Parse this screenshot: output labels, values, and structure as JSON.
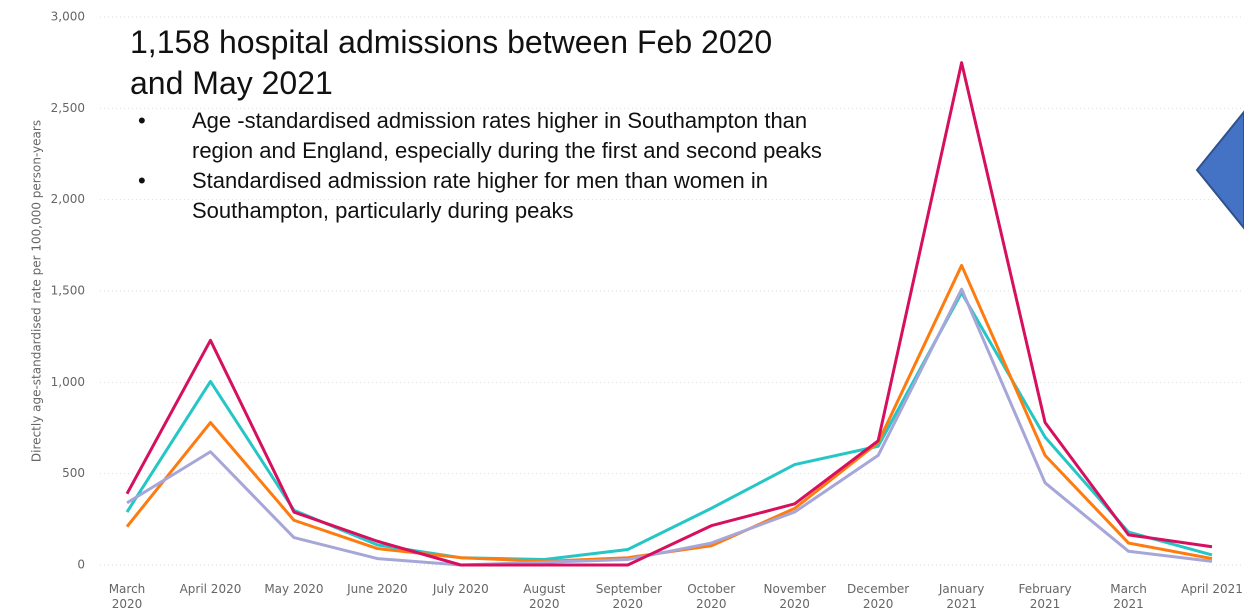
{
  "chart_data": {
    "type": "line",
    "title": "1,158 hospital admissions between Feb 2020 and May 2021",
    "bullets": [
      "Age -standardised admission rates higher in Southampton than region and England, especially during the first and second peaks",
      "Standardised admission rate higher for men than women in Southampton, particularly during peaks"
    ],
    "y_label": "Directly age-standardised rate per 100,000 person-years",
    "categories": [
      "March 2020",
      "April 2020",
      "May 2020",
      "June 2020",
      "July 2020",
      "August 2020",
      "September 2020",
      "October 2020",
      "November 2020",
      "December 2020",
      "January 2021",
      "February 2021",
      "March 2021",
      "April 2021"
    ],
    "series": [
      {
        "color": "#26c6c6",
        "values": [
          290,
          1005,
          300,
          110,
          40,
          30,
          85,
          310,
          550,
          650,
          1490,
          700,
          180,
          55
        ]
      },
      {
        "color": "#fe7b10",
        "values": [
          210,
          780,
          245,
          90,
          40,
          20,
          40,
          105,
          310,
          670,
          1640,
          600,
          120,
          35
        ]
      },
      {
        "color": "#a6a6d8",
        "values": [
          340,
          620,
          150,
          35,
          0,
          15,
          30,
          120,
          290,
          600,
          1510,
          450,
          75,
          20
        ]
      },
      {
        "color": "#d6105e",
        "values": [
          390,
          1230,
          290,
          130,
          0,
          0,
          0,
          215,
          335,
          680,
          2750,
          780,
          165,
          100
        ]
      }
    ],
    "ylim": [
      0,
      3000
    ],
    "yticks": [
      0,
      500,
      {
        "value": 1000,
        "label": "1,000"
      },
      {
        "value": 1500,
        "label": "1,500"
      },
      {
        "value": 2000,
        "label": "2,000"
      },
      {
        "value": 2500,
        "label": "2,500"
      },
      {
        "value": 3000,
        "label": "3,000"
      }
    ],
    "grid": true
  }
}
